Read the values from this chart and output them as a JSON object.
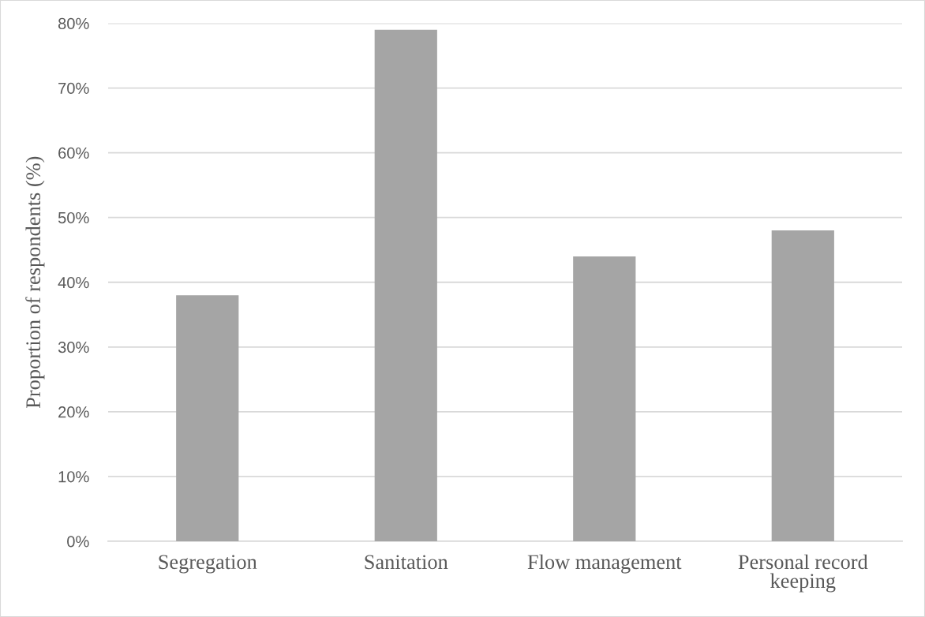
{
  "chart_data": {
    "type": "bar",
    "ylabel": "Proportion of respondents (%)",
    "categories": [
      "Segregation",
      "Sanitation",
      "Flow management",
      "Personal record keeping"
    ],
    "values": [
      38,
      79,
      44,
      48
    ],
    "color": "#a5a5a5",
    "ylim": [
      0,
      80
    ],
    "yticks": [
      {
        "value": 0,
        "label": "0%"
      },
      {
        "value": 10,
        "label": "10%"
      },
      {
        "value": 20,
        "label": "20%"
      },
      {
        "value": 30,
        "label": "30%"
      },
      {
        "value": 40,
        "label": "40%"
      },
      {
        "value": 50,
        "label": "50%"
      },
      {
        "value": 60,
        "label": "60%"
      },
      {
        "value": 70,
        "label": "70%"
      },
      {
        "value": 80,
        "label": "80%"
      }
    ],
    "grid": "y"
  }
}
